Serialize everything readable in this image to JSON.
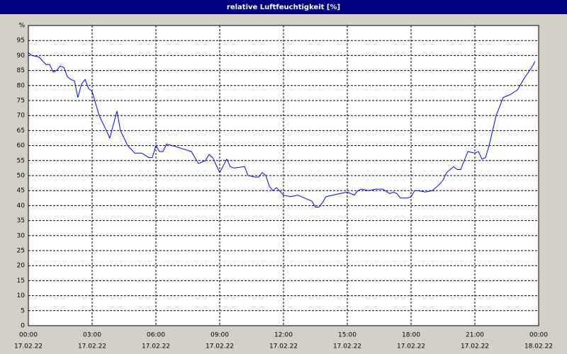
{
  "chart_data": {
    "type": "line",
    "title": "relative Luftfeuchtigkeit [%]",
    "series": [
      {
        "color": "#0000ff",
        "x": [
          0,
          0.17,
          0.5,
          0.83,
          1,
          1.17,
          1.33,
          1.5,
          1.67,
          1.83,
          2,
          2.17,
          2.33,
          2.5,
          2.67,
          2.83,
          3,
          3.33,
          3.67,
          3.83,
          4.17,
          4.33,
          4.67,
          5,
          5.33,
          5.67,
          5.83,
          6,
          6.17,
          6.33,
          6.5,
          7,
          7.67,
          8,
          8.33,
          8.5,
          8.67,
          9,
          9.33,
          9.5,
          9.67,
          10.17,
          10.33,
          10.67,
          10.83,
          11,
          11.17,
          11.33,
          11.5,
          11.67,
          12,
          12.33,
          12.67,
          13,
          13.33,
          13.5,
          13.67,
          13.83,
          14,
          14.33,
          14.67,
          15,
          15.33,
          15.5,
          15.67,
          16,
          16.33,
          16.67,
          17,
          17.17,
          17.33,
          17.5,
          17.83,
          18,
          18.17,
          18.33,
          18.67,
          19,
          19.33,
          19.5,
          19.67,
          20,
          20.17,
          20.33,
          20.67,
          21,
          21.17,
          21.33,
          21.5,
          21.67,
          22,
          22.33,
          22.67,
          23,
          23.33,
          23.67,
          23.83
        ],
        "values": [
          91,
          90,
          89.5,
          87,
          87,
          84.5,
          85,
          86.5,
          86,
          83,
          82,
          81.5,
          76,
          80.5,
          82,
          79,
          78,
          70,
          65,
          62.5,
          71.5,
          65,
          60,
          57.5,
          57.5,
          56,
          56,
          60,
          58,
          58,
          60.5,
          59.5,
          58,
          54,
          55,
          57,
          56,
          51,
          55.5,
          53,
          52.5,
          53,
          50,
          49.5,
          49.5,
          51,
          50,
          46.5,
          45,
          46,
          43.5,
          43,
          43.5,
          42.5,
          41.5,
          39.5,
          39.5,
          41,
          43,
          43.5,
          44,
          44.5,
          43.5,
          45,
          45.5,
          45,
          45.5,
          45.5,
          44,
          44.5,
          44,
          42.5,
          42.5,
          43,
          45,
          45,
          44.5,
          45,
          47,
          48.5,
          51,
          53,
          52,
          52,
          58,
          57.5,
          58,
          55.5,
          56,
          60,
          70,
          76,
          77,
          78.5,
          82.5,
          86,
          88
        ]
      }
    ],
    "xlim": [
      0,
      24
    ],
    "xticks": [
      {
        "value": 0,
        "label": "00:00",
        "date": "17.02.22"
      },
      {
        "value": 3,
        "label": "03:00",
        "date": "17.02.22"
      },
      {
        "value": 6,
        "label": "06:00",
        "date": "17.02.22"
      },
      {
        "value": 9,
        "label": "09:00",
        "date": "17.02.22"
      },
      {
        "value": 12,
        "label": "12:00",
        "date": "17.02.22"
      },
      {
        "value": 15,
        "label": "15:00",
        "date": "17.02.22"
      },
      {
        "value": 18,
        "label": "18:00",
        "date": "17.02.22"
      },
      {
        "value": 21,
        "label": "21:00",
        "date": "17.02.22"
      },
      {
        "value": 24,
        "label": "00:00",
        "date": "18.02.22"
      }
    ],
    "ylim": [
      0,
      100
    ],
    "yticks": [
      0,
      5,
      10,
      15,
      20,
      25,
      30,
      35,
      40,
      45,
      50,
      55,
      60,
      65,
      70,
      75,
      80,
      85,
      90,
      95,
      {
        "value": 100,
        "label": "%"
      }
    ],
    "grid": true
  }
}
